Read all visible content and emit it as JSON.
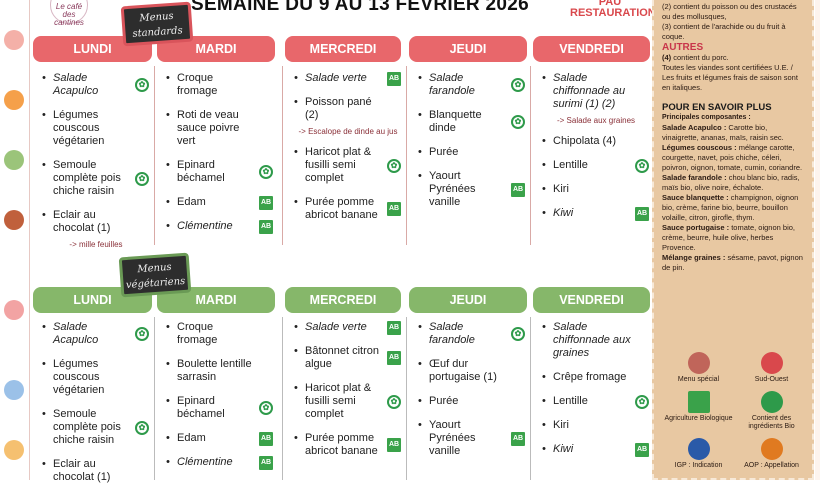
{
  "title": "SEMAINE DU  9 AU 13 FEVRIER 2026",
  "logos": {
    "cafe": "Le café des cantines",
    "pau": "PAU",
    "pau_sub": "RESTAURATION"
  },
  "sections": [
    {
      "board": "Menus standards",
      "color": "#e8676b",
      "days": [
        {
          "label": "LUNDI",
          "items": [
            {
              "text": "Salade Acapulco",
              "italic": true,
              "icon": "bio-ingredients-icon"
            },
            {
              "text": "Légumes couscous végétarien"
            },
            {
              "text": "Semoule complète pois chiche raisin",
              "icon": "bio-ingredients-icon"
            },
            {
              "text": "Eclair au chocolat (1)",
              "note": "-> mille feuilles"
            }
          ]
        },
        {
          "label": "MARDI",
          "items": [
            {
              "text": "Croque fromage"
            },
            {
              "text": "Roti de veau sauce poivre vert"
            },
            {
              "text": "Epinard béchamel",
              "icon": "bio-ingredients-icon"
            },
            {
              "text": "Edam",
              "icon": "ab-icon"
            },
            {
              "text": "Clémentine",
              "italic": true,
              "icon": "ab-icon"
            }
          ]
        },
        {
          "label": "MERCREDI",
          "items": [
            {
              "text": "Salade verte",
              "italic": true,
              "icon": "ab-icon"
            },
            {
              "text": "Poisson pané (2)",
              "note": "-> Escalope de dinde au jus"
            },
            {
              "text": "Haricot plat & fusilli semi complet",
              "icon": "bio-ingredients-icon"
            },
            {
              "text": "Purée pomme abricot banane",
              "icon": "ab-icon"
            }
          ]
        },
        {
          "label": "JEUDI",
          "items": [
            {
              "text": "Salade farandole",
              "italic": true,
              "icon": "bio-ingredients-icon"
            },
            {
              "text": "Blanquette dinde",
              "icon": "bio-ingredients-icon"
            },
            {
              "text": "Purée"
            },
            {
              "text": "Yaourt Pyrénées vanille",
              "icon": "ab-icon"
            }
          ]
        },
        {
          "label": "VENDREDI",
          "items": [
            {
              "text": "Salade chiffonnade au surimi (1) (2)",
              "italic": true,
              "note": "-> Salade aux graines"
            },
            {
              "text": "Chipolata (4)"
            },
            {
              "text": "Lentille",
              "icon": "bio-ingredients-icon"
            },
            {
              "text": "Kiri"
            },
            {
              "text": "Kiwi",
              "italic": true,
              "icon": "ab-icon"
            }
          ]
        }
      ]
    },
    {
      "board": "Menus végétariens",
      "color": "#86b76a",
      "days": [
        {
          "label": "LUNDI",
          "items": [
            {
              "text": "Salade Acapulco",
              "italic": true,
              "icon": "bio-ingredients-icon"
            },
            {
              "text": "Légumes couscous végétarien"
            },
            {
              "text": "Semoule complète pois chiche raisin",
              "icon": "bio-ingredients-icon"
            },
            {
              "text": "Eclair au chocolat (1)"
            }
          ]
        },
        {
          "label": "MARDI",
          "items": [
            {
              "text": "Croque fromage"
            },
            {
              "text": "Boulette lentille sarrasin"
            },
            {
              "text": "Epinard béchamel",
              "icon": "bio-ingredients-icon"
            },
            {
              "text": "Edam",
              "icon": "ab-icon"
            },
            {
              "text": "Clémentine",
              "italic": true,
              "icon": "ab-icon"
            }
          ]
        },
        {
          "label": "MERCREDI",
          "items": [
            {
              "text": "Salade verte",
              "italic": true,
              "icon": "ab-icon"
            },
            {
              "text": "Bâtonnet citron algue",
              "icon": "ab-icon"
            },
            {
              "text": "Haricot plat & fusilli semi complet",
              "icon": "bio-ingredients-icon"
            },
            {
              "text": "Purée pomme abricot banane",
              "icon": "ab-icon"
            }
          ]
        },
        {
          "label": "JEUDI",
          "items": [
            {
              "text": "Salade farandole",
              "italic": true,
              "icon": "bio-ingredients-icon"
            },
            {
              "text": "Œuf dur portugaise (1)"
            },
            {
              "text": "Purée"
            },
            {
              "text": "Yaourt Pyrénées vanille",
              "icon": "ab-icon"
            }
          ]
        },
        {
          "label": "VENDREDI",
          "items": [
            {
              "text": "Salade chiffonnade aux graines",
              "italic": true
            },
            {
              "text": "Crêpe fromage"
            },
            {
              "text": "Lentille",
              "icon": "bio-ingredients-icon"
            },
            {
              "text": "Kiri"
            },
            {
              "text": "Kiwi",
              "italic": true,
              "icon": "ab-icon"
            }
          ]
        }
      ]
    }
  ],
  "sidebar": {
    "allergens": [
      "(2) contient du poisson ou des crustacés ou des mollusques,",
      "(3) contient de l'arachide ou du fruit à coque."
    ],
    "autres_title": "AUTRES",
    "autres_num": "(4)",
    "autres_text": " contient du porc.",
    "certif": "Toutes les viandes sont certifiées U.E. / Les fruits et légumes frais de saison sont en italiques.",
    "plus_title": "POUR EN SAVOIR PLUS",
    "composantes": "Principales composantes :",
    "ingredients": [
      {
        "name": "Salade Acapulco :",
        "desc": " Carotte bio, vinaigrette, ananas, maïs, raisin sec."
      },
      {
        "name": "Légumes couscous :",
        "desc": " mélange carotte, courgette, navet, pois chiche, céleri, poivron, oignon, tomate, cumin, coriandre."
      },
      {
        "name": "Salade farandole :",
        "desc": " chou blanc bio, radis, maïs bio, olive noire, échalote."
      },
      {
        "name": "Sauce blanquette :",
        "desc": " champignon, oignon bio, crème, farine bio, beurre, bouillon volaille, citron, girofle, thym."
      },
      {
        "name": "Sauce portugaise :",
        "desc": " tomate, oignon bio, crème, beurre, huile olive, herbes Provence."
      },
      {
        "name": "Mélange graines :",
        "desc": " sésame, pavot, pignon de pin."
      }
    ],
    "legend": [
      {
        "label": "Menu spécial",
        "icon": "special-menu-icon",
        "color": "#c0655a"
      },
      {
        "label": "Sud-Ouest",
        "icon": "sud-ouest-icon",
        "color": "#d9484c"
      },
      {
        "label": "Agriculture Biologique",
        "icon": "ab-icon",
        "color": "#3aa24a"
      },
      {
        "label": "Contient des ingrédients Bio",
        "icon": "bio-ingredients-icon",
        "color": "#2e9a4a"
      },
      {
        "label": "IGP : Indication",
        "icon": "igp-icon",
        "color": "#2a5aa8"
      },
      {
        "label": "AOP : Appellation",
        "icon": "aop-icon",
        "color": "#e07a20"
      }
    ]
  }
}
